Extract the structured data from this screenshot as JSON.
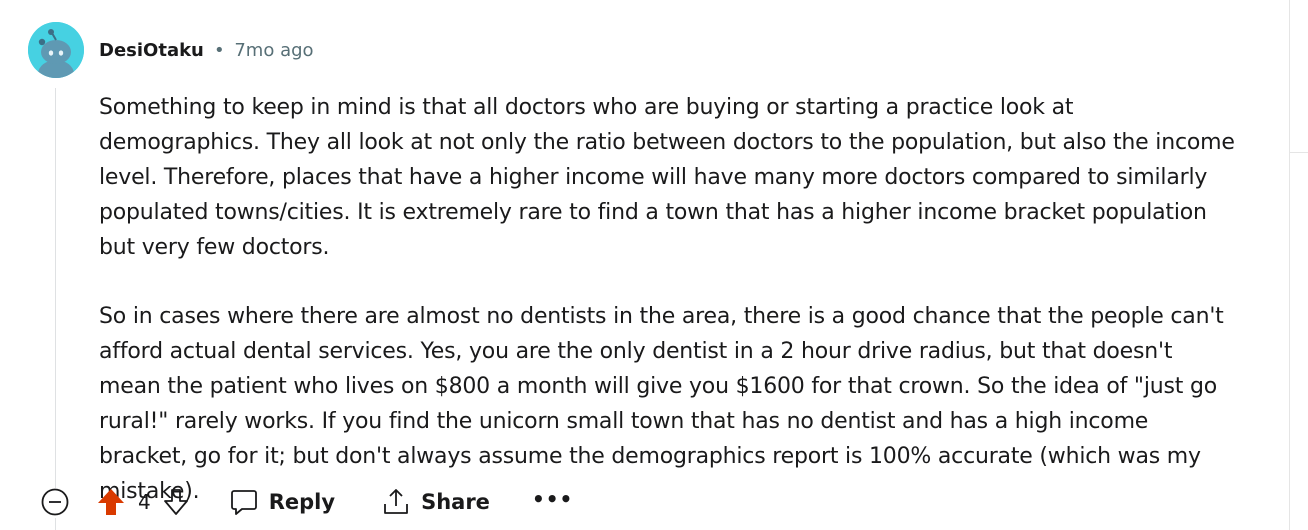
{
  "comment": {
    "author": "DesiOtaku",
    "separator": "•",
    "age": "7mo ago",
    "paragraphs": [
      "Something to keep in mind is that all doctors who are buying or starting a practice look at demographics. They all look at not only the ratio between doctors to the population, but also the income level. Therefore, places that have a higher income will have many more doctors compared to similarly populated towns/cities. It is extremely rare to find a town that has a higher income bracket population but very few doctors.",
      "So in cases where there are almost no dentists in the area, there is a good chance that the people can't afford actual dental services. Yes, you are the only dentist in a 2 hour drive radius, but that doesn't mean the patient who lives on $800 a month will give you $1600 for that crown. So the idea of \"just go rural!\" rarely works. If you find the unicorn small town that has no dentist and has a high income bracket, go for it; but don't always assume the demographics report is 100% accurate (which was my mistake)."
    ],
    "score": "4",
    "upvoted": true
  },
  "actions": {
    "reply_label": "Reply",
    "share_label": "Share",
    "more_label": "•••"
  },
  "icons": {
    "collapse": "minus-circle-icon",
    "upvote": "upvote-arrow-icon",
    "downvote": "downvote-arrow-icon",
    "reply": "speech-bubble-icon",
    "share": "share-upload-icon",
    "avatar": "snoo-avatar-icon"
  },
  "colors": {
    "avatar_bg": "#46d1e2",
    "upvote_active": "#d93a00",
    "meta_text": "#576f76",
    "thread_line": "#dfe1e3"
  }
}
